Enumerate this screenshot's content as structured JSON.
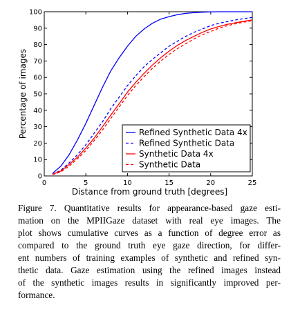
{
  "chart_data": {
    "type": "line",
    "title": "",
    "xlabel": "Distance from ground truth [degrees]",
    "ylabel": "Percentage of images",
    "xlim": [
      0,
      25
    ],
    "ylim": [
      0,
      100
    ],
    "xticks": [
      "0",
      "5",
      "10",
      "15",
      "20",
      "25"
    ],
    "yticks": [
      "0",
      "10",
      "20",
      "30",
      "40",
      "50",
      "60",
      "70",
      "80",
      "90",
      "100"
    ],
    "grid": false,
    "legend_position": "lower-right",
    "series": [
      {
        "name": "Refined Synthetic Data 4x",
        "color": "#0000ff",
        "dash": "solid",
        "x": [
          1,
          2,
          3,
          4,
          5,
          6,
          7,
          8,
          9,
          10,
          11,
          12,
          13,
          14,
          15,
          16,
          17,
          18,
          19,
          20,
          21,
          22,
          23,
          24,
          25
        ],
        "y": [
          1.5,
          6,
          13,
          22,
          32,
          43,
          54,
          64,
          72,
          79,
          85,
          89.5,
          93,
          95.5,
          97,
          98.2,
          99,
          99.4,
          99.7,
          99.9,
          100,
          100,
          100,
          100,
          100
        ]
      },
      {
        "name": "Refined Synthetic Data",
        "color": "#0000ff",
        "dash": "dashed",
        "x": [
          1,
          2,
          3,
          4,
          5,
          6,
          7,
          8,
          9,
          10,
          11,
          12,
          13,
          14,
          15,
          16,
          17,
          18,
          19,
          20,
          21,
          22,
          23,
          24,
          25
        ],
        "y": [
          1,
          3.5,
          8,
          13,
          19,
          26,
          33,
          41,
          48,
          55,
          61,
          66.5,
          71,
          75,
          79,
          82,
          85,
          87.5,
          89.5,
          91.5,
          93,
          94,
          95,
          95.8,
          96.5
        ]
      },
      {
        "name": "Synthetic Data 4x",
        "color": "#ff0000",
        "dash": "solid",
        "x": [
          1,
          2,
          3,
          4,
          5,
          6,
          7,
          8,
          9,
          10,
          11,
          12,
          13,
          14,
          15,
          16,
          17,
          18,
          19,
          20,
          21,
          22,
          23,
          24,
          25
        ],
        "y": [
          1,
          3,
          7,
          11.5,
          17,
          23,
          30,
          37,
          44,
          51,
          57,
          62.5,
          67.5,
          72,
          76,
          79.5,
          82.5,
          85,
          87.5,
          89.5,
          91,
          92.3,
          93.3,
          94.2,
          95
        ]
      },
      {
        "name": "Synthetic Data",
        "color": "#ff0000",
        "dash": "dashed",
        "x": [
          1,
          2,
          3,
          4,
          5,
          6,
          7,
          8,
          9,
          10,
          11,
          12,
          13,
          14,
          15,
          16,
          17,
          18,
          19,
          20,
          21,
          22,
          23,
          24,
          25
        ],
        "y": [
          0.8,
          2.5,
          6,
          10.5,
          15.5,
          21.5,
          28,
          35,
          42,
          49,
          55,
          60.5,
          65.5,
          70,
          74,
          77.5,
          80.5,
          83.5,
          86,
          88,
          90,
          91.5,
          92.7,
          93.7,
          94.5
        ]
      }
    ]
  },
  "caption": {
    "lines": [
      "Figure 7. Quantitative results for appearance-based gaze esti-",
      "mation on the MPIIGaze dataset with real eye images.  The",
      "plot shows cumulative curves as a function of degree error as",
      "compared to the ground truth eye gaze direction, for differ-",
      "ent numbers of training examples of synthetic and refined syn-",
      "thetic data.  Gaze estimation using the refined images instead",
      "of the synthetic images results in significantly improved per-",
      "formance."
    ]
  }
}
